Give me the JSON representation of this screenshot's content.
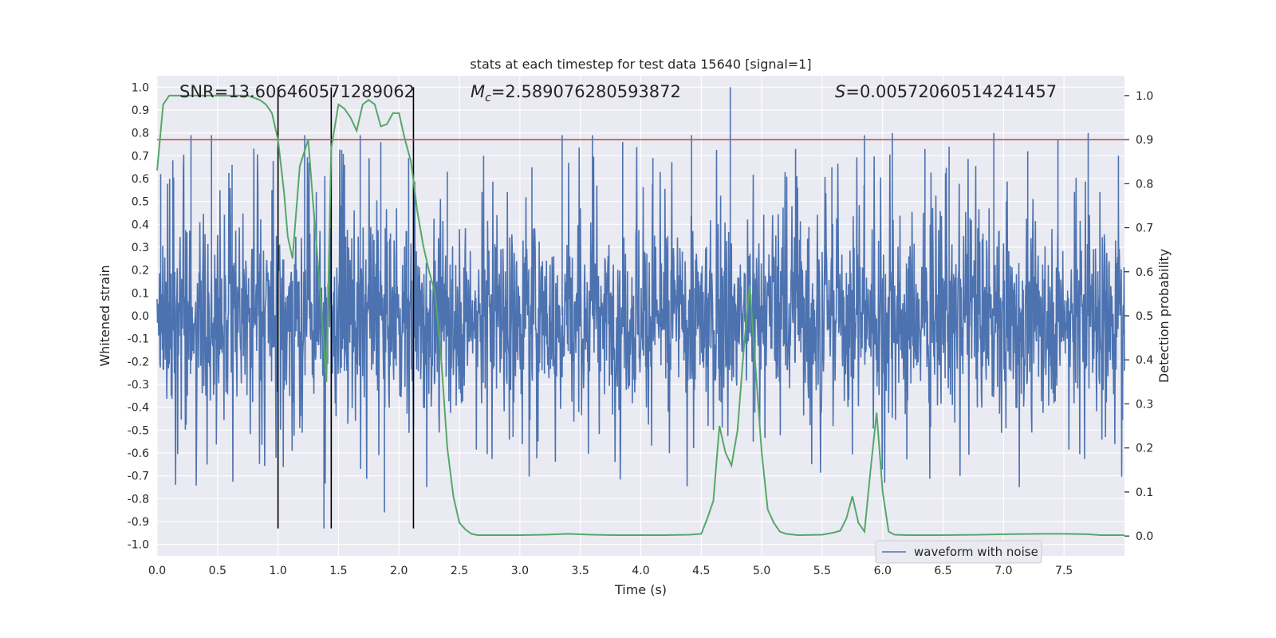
{
  "chart_data": {
    "type": "line",
    "title": "stats at each timestep for test data 15640 [signal=1]",
    "xlabel": "Time (s)",
    "ylabel": "Whitened strain",
    "ylabel_right": "Detection probability",
    "xlim": [
      0.0,
      8.0
    ],
    "ylim": [
      -1.05,
      1.05
    ],
    "ylim_right": [
      -0.045,
      1.045
    ],
    "x_ticks": [
      "0.0",
      "0.5",
      "1.0",
      "1.5",
      "2.0",
      "2.5",
      "3.0",
      "3.5",
      "4.0",
      "4.5",
      "5.0",
      "5.5",
      "6.0",
      "6.5",
      "7.0",
      "7.5"
    ],
    "y_ticks": [
      "1.0",
      "0.9",
      "0.8",
      "0.7",
      "0.6",
      "0.5",
      "0.4",
      "0.3",
      "0.2",
      "0.1",
      "0.0",
      "-0.1",
      "-0.2",
      "-0.3",
      "-0.4",
      "-0.5",
      "-0.6",
      "-0.7",
      "-0.8",
      "-0.9",
      "-1.0"
    ],
    "y_ticks_right": [
      "1.0",
      "0.9",
      "0.8",
      "0.7",
      "0.6",
      "0.5",
      "0.4",
      "0.3",
      "0.2",
      "0.1",
      "0.0"
    ],
    "grid": true,
    "legend_position": "lower-right",
    "annotations": {
      "snr": "SNR=13.606460571289062",
      "mc_symbol": "M",
      "mc_subscript": "c",
      "mc_value": "=2.589076280593872",
      "s_symbol": "S",
      "s_value": "=0.00572060514241457"
    },
    "threshold": {
      "value": 0.9,
      "axis": "right",
      "color": "#c44e52"
    },
    "vlines": [
      1.0,
      1.44,
      2.12
    ],
    "series": [
      {
        "name": "waveform with noise",
        "axis": "left",
        "color": "#4c72b0",
        "representation": "dense noise band, approx. ±0.3 core with spikes to ±0.8",
        "peaks": [
          [
            0.03,
            0.62
          ],
          [
            0.13,
            0.68
          ],
          [
            0.28,
            0.79
          ],
          [
            0.45,
            0.79
          ],
          [
            0.62,
            0.66
          ],
          [
            0.8,
            0.6
          ],
          [
            0.95,
            0.55
          ],
          [
            1.22,
            0.79
          ],
          [
            1.38,
            -0.93
          ],
          [
            1.44,
            -0.7
          ],
          [
            1.55,
            0.66
          ],
          [
            1.68,
            0.79
          ],
          [
            1.85,
            0.76
          ],
          [
            1.88,
            -0.86
          ],
          [
            2.08,
            0.69
          ],
          [
            2.4,
            0.63
          ],
          [
            2.7,
            0.7
          ],
          [
            3.1,
            0.65
          ],
          [
            3.35,
            0.79
          ],
          [
            3.6,
            0.79
          ],
          [
            3.85,
            0.76
          ],
          [
            4.1,
            0.69
          ],
          [
            4.42,
            0.79
          ],
          [
            4.74,
            1.0
          ],
          [
            4.93,
            -0.55
          ],
          [
            5.28,
            0.73
          ],
          [
            5.58,
            0.65
          ],
          [
            5.85,
            0.79
          ],
          [
            6.08,
            0.8
          ],
          [
            6.35,
            0.73
          ],
          [
            6.55,
            0.74
          ],
          [
            6.92,
            0.8
          ],
          [
            7.2,
            0.72
          ],
          [
            7.45,
            0.77
          ],
          [
            7.7,
            0.8
          ],
          [
            7.95,
            0.7
          ]
        ]
      },
      {
        "name": "",
        "axis": "right",
        "color": "#55a868",
        "x": [
          0.0,
          0.05,
          0.1,
          0.15,
          0.2,
          0.3,
          0.4,
          0.5,
          0.6,
          0.7,
          0.75,
          0.8,
          0.85,
          0.9,
          0.95,
          1.0,
          1.05,
          1.08,
          1.12,
          1.18,
          1.25,
          1.3,
          1.35,
          1.4,
          1.44,
          1.5,
          1.55,
          1.6,
          1.65,
          1.7,
          1.75,
          1.8,
          1.85,
          1.9,
          1.95,
          2.0,
          2.05,
          2.1,
          2.15,
          2.2,
          2.25,
          2.3,
          2.35,
          2.4,
          2.45,
          2.5,
          2.55,
          2.6,
          2.65,
          2.7,
          2.8,
          3.0,
          3.2,
          3.4,
          3.6,
          3.8,
          4.0,
          4.2,
          4.4,
          4.5,
          4.55,
          4.6,
          4.65,
          4.7,
          4.75,
          4.8,
          4.85,
          4.9,
          4.95,
          5.0,
          5.05,
          5.1,
          5.15,
          5.2,
          5.3,
          5.5,
          5.6,
          5.65,
          5.7,
          5.75,
          5.8,
          5.85,
          5.9,
          5.95,
          6.0,
          6.05,
          6.1,
          6.2,
          6.5,
          6.8,
          7.0,
          7.3,
          7.5,
          7.7,
          7.8,
          8.0
        ],
        "values": [
          0.83,
          0.98,
          1.0,
          1.0,
          1.0,
          1.0,
          1.0,
          1.0,
          1.0,
          1.0,
          1.0,
          0.995,
          0.99,
          0.98,
          0.96,
          0.9,
          0.78,
          0.68,
          0.63,
          0.84,
          0.9,
          0.72,
          0.55,
          0.35,
          0.88,
          0.98,
          0.97,
          0.95,
          0.92,
          0.98,
          0.99,
          0.98,
          0.93,
          0.935,
          0.96,
          0.96,
          0.9,
          0.85,
          0.74,
          0.66,
          0.6,
          0.55,
          0.4,
          0.2,
          0.09,
          0.03,
          0.015,
          0.005,
          0.002,
          0.002,
          0.002,
          0.002,
          0.003,
          0.005,
          0.003,
          0.002,
          0.002,
          0.002,
          0.003,
          0.005,
          0.04,
          0.08,
          0.25,
          0.19,
          0.16,
          0.24,
          0.42,
          0.57,
          0.38,
          0.19,
          0.06,
          0.03,
          0.01,
          0.005,
          0.002,
          0.003,
          0.008,
          0.012,
          0.04,
          0.09,
          0.03,
          0.01,
          0.15,
          0.28,
          0.1,
          0.01,
          0.003,
          0.002,
          0.002,
          0.003,
          0.004,
          0.005,
          0.005,
          0.004,
          0.002,
          0.002
        ]
      }
    ]
  }
}
